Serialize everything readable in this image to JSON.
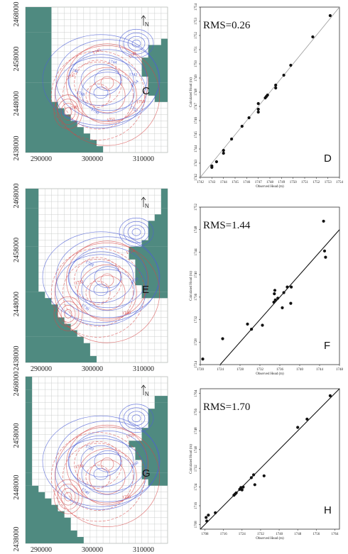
{
  "colors": {
    "inactive": "#4f8a80",
    "grid": "#c6cac8",
    "contour_red": "#d64545",
    "contour_blue": "#4d5fd6",
    "ink": "#222222"
  },
  "maps": [
    {
      "id": "C",
      "letter": "C",
      "y_ticks": [
        "2468000",
        "2458000",
        "2448000",
        "2438000"
      ],
      "x_ticks": [
        "290000",
        "300000",
        "310000"
      ],
      "north_label": "N",
      "contour_labels": [
        "1754",
        "1753",
        "1752",
        "1751",
        "1750",
        "1749",
        "1748",
        "1747",
        "1746",
        "1745",
        "1744",
        "1743",
        "1742"
      ]
    },
    {
      "id": "E",
      "letter": "E",
      "y_ticks": [
        "2468000",
        "2458000",
        "2448000",
        "2438000"
      ],
      "x_ticks": [
        "290000",
        "300000",
        "310000"
      ],
      "north_label": "N",
      "contour_labels": [
        "1744",
        "1740",
        "1736",
        "1732",
        "1728",
        "1724"
      ]
    },
    {
      "id": "G",
      "letter": "G",
      "y_ticks": [
        "2468000",
        "2458000",
        "2448000",
        "2438000"
      ],
      "x_ticks": [
        "290000",
        "300000",
        "310000"
      ],
      "north_label": "N",
      "contour_labels": [
        "1760",
        "1750",
        "1740",
        "1730",
        "1720",
        "1710"
      ]
    }
  ],
  "chart_data": [
    {
      "type": "scatter",
      "letter": "D",
      "rms_label": "RMS=0.26",
      "xlabel": "Observed Head (m)",
      "ylabel": "Calculated Head (m)",
      "xlim": [
        1742,
        1754
      ],
      "ylim": [
        1742,
        1754
      ],
      "x_ticks": [
        "1742",
        "1743",
        "1744",
        "1745",
        "1746",
        "1747",
        "1748",
        "1749",
        "1750",
        "1751",
        "1752",
        "1753",
        "1754"
      ],
      "y_ticks": [
        "1742",
        "1743",
        "1744",
        "1745",
        "1746",
        "1747",
        "1748",
        "1749",
        "1750",
        "1751",
        "1752",
        "1753",
        "1754"
      ],
      "line": "1:1",
      "points": [
        [
          1743.0,
          1742.7
        ],
        [
          1743.0,
          1742.8
        ],
        [
          1743.4,
          1743.1
        ],
        [
          1744.0,
          1743.7
        ],
        [
          1744.0,
          1743.9
        ],
        [
          1744.7,
          1744.7
        ],
        [
          1745.6,
          1745.6
        ],
        [
          1746.2,
          1746.2
        ],
        [
          1747.0,
          1746.6
        ],
        [
          1747.0,
          1746.8
        ],
        [
          1747.0,
          1747.2
        ],
        [
          1747.6,
          1747.6
        ],
        [
          1747.7,
          1747.7
        ],
        [
          1747.8,
          1747.8
        ],
        [
          1748.5,
          1748.3
        ],
        [
          1748.5,
          1748.5
        ],
        [
          1749.2,
          1749.2
        ],
        [
          1749.8,
          1749.9
        ],
        [
          1751.7,
          1751.9
        ],
        [
          1753.2,
          1753.4
        ]
      ]
    },
    {
      "type": "scatter",
      "letter": "F",
      "rms_label": "RMS=1.44",
      "xlabel": "Observed Head (m)",
      "ylabel": "Calculated Head (m)",
      "xlim": [
        1720,
        1748
      ],
      "ylim": [
        1724,
        1752
      ],
      "x_ticks": [
        "1720",
        "1724",
        "1728",
        "1732",
        "1736",
        "1740",
        "1744",
        "1748"
      ],
      "y_ticks": [
        "1724",
        "1728",
        "1732",
        "1736",
        "1740",
        "1744",
        "1748",
        "1752"
      ],
      "line": "1:1",
      "points": [
        [
          1720.5,
          1725.0
        ],
        [
          1724.5,
          1728.6
        ],
        [
          1729.5,
          1731.2
        ],
        [
          1730.3,
          1730.3
        ],
        [
          1732.5,
          1731.0
        ],
        [
          1734.8,
          1735.1
        ],
        [
          1734.9,
          1736.6
        ],
        [
          1735.0,
          1737.2
        ],
        [
          1735.1,
          1735.5
        ],
        [
          1735.6,
          1735.8
        ],
        [
          1736.8,
          1736.8
        ],
        [
          1736.5,
          1734.1
        ],
        [
          1737.5,
          1737.8
        ],
        [
          1738.3,
          1737.8
        ],
        [
          1738.2,
          1734.9
        ],
        [
          1744.8,
          1749.5
        ],
        [
          1745.0,
          1744.2
        ],
        [
          1745.2,
          1743.1
        ]
      ]
    },
    {
      "type": "scatter",
      "letter": "H",
      "rms_label": "RMS=1.70",
      "xlabel": "Observed Head (m)",
      "ylabel": "Calculated Head (m)",
      "xlim": [
        1706,
        1766
      ],
      "ylim": [
        1706,
        1766
      ],
      "x_ticks": [
        "1708",
        "1716",
        "1724",
        "1732",
        "1740",
        "1748",
        "1756",
        "1764"
      ],
      "y_ticks": [
        "1708",
        "1716",
        "1724",
        "1732",
        "1740",
        "1748",
        "1756",
        "1764"
      ],
      "line": "1:1",
      "points": [
        [
          1708.5,
          1711.0
        ],
        [
          1708.8,
          1709.5
        ],
        [
          1709.5,
          1712.0
        ],
        [
          1712.5,
          1713.0
        ],
        [
          1720.5,
          1720.5
        ],
        [
          1721.0,
          1721.0
        ],
        [
          1721.5,
          1721.5
        ],
        [
          1723.0,
          1723.0
        ],
        [
          1723.5,
          1723.8
        ],
        [
          1724.0,
          1722.8
        ],
        [
          1724.5,
          1724.0
        ],
        [
          1728.0,
          1728.0
        ],
        [
          1729.0,
          1729.2
        ],
        [
          1729.5,
          1725.0
        ],
        [
          1733.5,
          1728.8
        ],
        [
          1748.0,
          1749.5
        ],
        [
          1752.0,
          1753.0
        ],
        [
          1762.0,
          1763.0
        ]
      ]
    }
  ]
}
